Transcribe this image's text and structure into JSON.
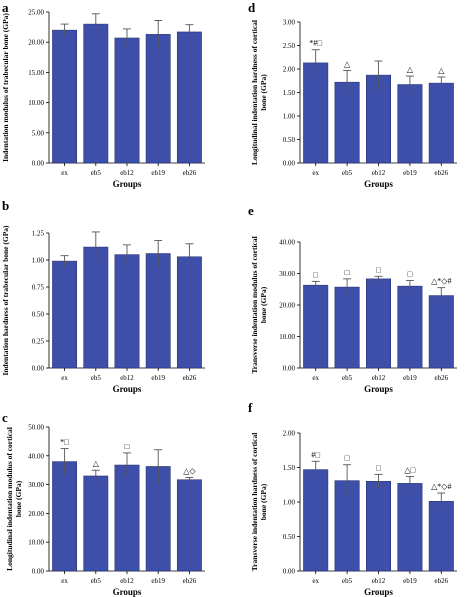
{
  "colors": {
    "bar": "#3D4FA8",
    "bar_edge": "#1F2A6B",
    "axis": "#000000",
    "error": "#555555"
  },
  "chart_data": [
    {
      "type": "bar",
      "panel_label": "a",
      "categories": [
        "ex",
        "eb5",
        "eb12",
        "eb19",
        "eb26"
      ],
      "values": [
        22.0,
        23.0,
        20.7,
        21.3,
        21.7
      ],
      "errors": [
        1.0,
        1.7,
        1.5,
        2.3,
        1.2
      ],
      "annotations": [
        "",
        "",
        "",
        "",
        ""
      ],
      "ylim": [
        0,
        25
      ],
      "yticks": [
        "0.00",
        "5.00",
        "10.00",
        "15.00",
        "20.00",
        "25.00"
      ],
      "ytick_values": [
        0,
        5,
        10,
        15,
        20,
        25
      ],
      "xlabel": "Groups",
      "ylabel": "Indentation modulus of trabecular bone (GPa)"
    },
    {
      "type": "bar",
      "panel_label": "b",
      "categories": [
        "ex",
        "eb5",
        "eb12",
        "eb19",
        "eb26"
      ],
      "values": [
        0.99,
        1.12,
        1.05,
        1.06,
        1.03
      ],
      "errors": [
        0.05,
        0.14,
        0.09,
        0.12,
        0.12
      ],
      "annotations": [
        "",
        "",
        "",
        "",
        ""
      ],
      "ylim": [
        0,
        1.25
      ],
      "yticks": [
        "0.00",
        "0.25",
        "0.50",
        "0.75",
        "1.00",
        "1.25"
      ],
      "ytick_values": [
        0,
        0.25,
        0.5,
        0.75,
        1.0,
        1.25
      ],
      "xlabel": "Groups",
      "ylabel": "Indentation hardness of trabecular bone (GPa)"
    },
    {
      "type": "bar",
      "panel_label": "c",
      "categories": [
        "ex",
        "eb5",
        "eb12",
        "eb19",
        "eb26"
      ],
      "values": [
        38.0,
        33.0,
        36.8,
        36.3,
        31.7
      ],
      "errors": [
        4.5,
        2.0,
        4.2,
        5.8,
        0.8
      ],
      "annotations": [
        "*□",
        "△",
        "□",
        "",
        "△◇"
      ],
      "ylim": [
        0,
        50
      ],
      "yticks": [
        "0.00",
        "10.00",
        "20.00",
        "30.00",
        "40.00",
        "50.00"
      ],
      "ytick_values": [
        0,
        10,
        20,
        30,
        40,
        50
      ],
      "xlabel": "Groups",
      "ylabel": "Longitudinal indentation modulus of cortical bone (GPa)"
    },
    {
      "type": "bar",
      "panel_label": "d",
      "categories": [
        "ex",
        "eb5",
        "eb12",
        "eb19",
        "eb26"
      ],
      "values": [
        2.13,
        1.72,
        1.87,
        1.67,
        1.7
      ],
      "errors": [
        0.28,
        0.25,
        0.3,
        0.18,
        0.13
      ],
      "annotations": [
        "*#□",
        "△",
        "",
        "△",
        "△"
      ],
      "ylim": [
        0,
        3.0
      ],
      "yticks": [
        "0.00",
        "0.50",
        "1.00",
        "1.50",
        "2.00",
        "2.50",
        "3.00"
      ],
      "ytick_values": [
        0,
        0.5,
        1.0,
        1.5,
        2.0,
        2.5,
        3.0
      ],
      "xlabel": "Groups",
      "ylabel": "Longitudinal indentation hardness of cortical bone (GPa)"
    },
    {
      "type": "bar",
      "panel_label": "e",
      "categories": [
        "ex",
        "eb5",
        "eb12",
        "eb19",
        "eb26"
      ],
      "values": [
        26.3,
        25.7,
        28.3,
        26.0,
        23.0
      ],
      "errors": [
        1.2,
        2.6,
        0.8,
        1.8,
        2.5
      ],
      "annotations": [
        "□",
        "□",
        "□",
        "□",
        "△*◇#"
      ],
      "ylim": [
        0,
        40
      ],
      "yticks": [
        "0.00",
        "10.00",
        "20.00",
        "30.00",
        "40.00"
      ],
      "ytick_values": [
        0,
        10,
        20,
        30,
        40
      ],
      "xlabel": "Groups",
      "ylabel": "Transverse indentation modulus of cortical bone (GPa)"
    },
    {
      "type": "bar",
      "panel_label": "f",
      "categories": [
        "ex",
        "eb5",
        "eb12",
        "eb19",
        "eb26"
      ],
      "values": [
        1.47,
        1.31,
        1.3,
        1.27,
        1.01
      ],
      "errors": [
        0.12,
        0.23,
        0.1,
        0.1,
        0.12
      ],
      "annotations": [
        "#□",
        "□",
        "□",
        "△□",
        "△*◇#"
      ],
      "ylim": [
        0,
        2.0
      ],
      "yticks": [
        "0.00",
        "0.50",
        "1.00",
        "1.50",
        "2.00"
      ],
      "ytick_values": [
        0,
        0.5,
        1.0,
        1.5,
        2.0
      ],
      "xlabel": "Groups",
      "ylabel": "Transverse indentation hardness of cortical bone (GPa)"
    }
  ]
}
